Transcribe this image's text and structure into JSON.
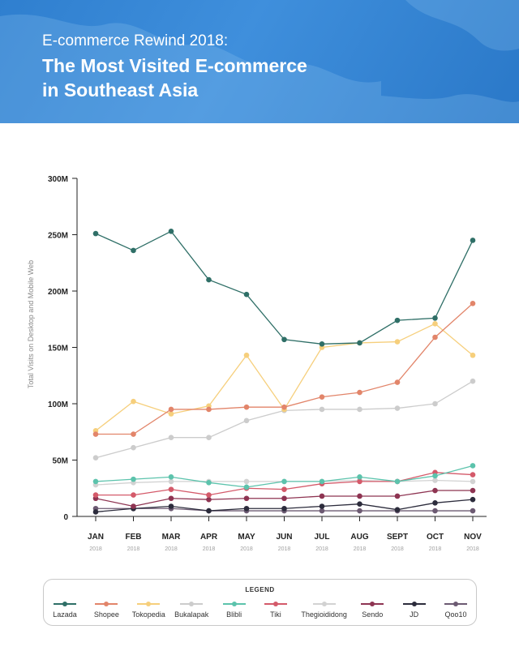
{
  "header": {
    "subtitle": "E-commerce Rewind 2018:",
    "title_line1": "The Most Visited E-commerce",
    "title_line2": "in Southeast Asia"
  },
  "chart_data": {
    "type": "line",
    "ylabel": "Total Visits on Desktop and Mobile Web",
    "ylim": [
      0,
      300
    ],
    "yticks": [
      0,
      50,
      100,
      150,
      200,
      250,
      300
    ],
    "ytick_labels": [
      "0",
      "50M",
      "100M",
      "150M",
      "200M",
      "250M",
      "300M"
    ],
    "categories": [
      "JAN",
      "FEB",
      "MAR",
      "APR",
      "MAY",
      "JUN",
      "JUL",
      "AUG",
      "SEPT",
      "OCT",
      "NOV"
    ],
    "category_year": "2018",
    "grid": false,
    "legend_title": "LEGEND",
    "legend_position": "bottom",
    "series": [
      {
        "name": "Lazada",
        "color": "#2f6f67",
        "values": [
          251,
          236,
          253,
          210,
          197,
          157,
          153,
          154,
          174,
          176,
          245
        ]
      },
      {
        "name": "Shopee",
        "color": "#e2856a",
        "values": [
          73,
          73,
          95,
          95,
          97,
          97,
          106,
          110,
          119,
          159,
          189
        ]
      },
      {
        "name": "Tokopedia",
        "color": "#f6cf7c",
        "values": [
          76,
          102,
          91,
          98,
          143,
          95,
          150,
          154,
          155,
          171,
          143
        ]
      },
      {
        "name": "Bukalapak",
        "color": "#cccccc",
        "values": [
          52,
          61,
          70,
          70,
          85,
          94,
          95,
          95,
          96,
          100,
          120
        ]
      },
      {
        "name": "Blibli",
        "color": "#5cc3ac",
        "values": [
          31,
          33,
          35,
          30,
          26,
          31,
          31,
          35,
          31,
          36,
          45
        ]
      },
      {
        "name": "Tiki",
        "color": "#d45a6a",
        "values": [
          19,
          19,
          24,
          19,
          25,
          24,
          29,
          31,
          31,
          39,
          37
        ]
      },
      {
        "name": "Thegioididong",
        "color": "#d2d2d2",
        "values": [
          28,
          30,
          31,
          31,
          31,
          31,
          31,
          32,
          31,
          32,
          31
        ]
      },
      {
        "name": "Sendo",
        "color": "#8e3452",
        "values": [
          16,
          9,
          16,
          15,
          16,
          16,
          18,
          18,
          18,
          23,
          23
        ]
      },
      {
        "name": "JD",
        "color": "#2c2c3c",
        "values": [
          4,
          7,
          9,
          5,
          7,
          7,
          9,
          11,
          6,
          12,
          15
        ]
      },
      {
        "name": "Qoo10",
        "color": "#6c5a72",
        "values": [
          7,
          7,
          7,
          5,
          5,
          5,
          5,
          5,
          5,
          5,
          5
        ]
      }
    ]
  },
  "colors": {
    "banner": "#3284d2",
    "axis": "#222222",
    "tick_label": "#222222",
    "year_label": "#a0a0a0"
  }
}
